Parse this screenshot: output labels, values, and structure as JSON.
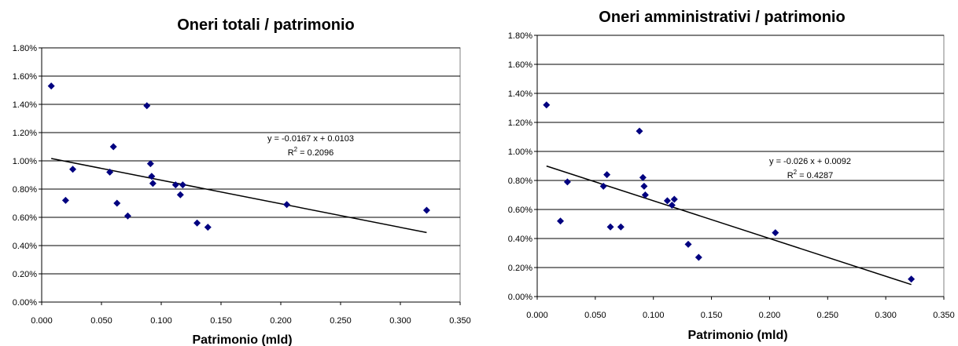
{
  "chart_data": [
    {
      "type": "scatter",
      "title": "Oneri totali /  patrimonio",
      "xlabel": "Patrimonio (mld)",
      "ylabel": "",
      "xlim": [
        0,
        0.35
      ],
      "ylim": [
        0,
        0.018
      ],
      "x_ticks": [
        "0.000",
        "0.050",
        "0.100",
        "0.150",
        "0.200",
        "0.250",
        "0.300",
        "0.350"
      ],
      "y_ticks": [
        "0.00%",
        "0.20%",
        "0.40%",
        "0.60%",
        "0.80%",
        "1.00%",
        "1.20%",
        "1.40%",
        "1.60%",
        "1.80%"
      ],
      "grid": "horizontal",
      "marker_color": "#000080",
      "points": [
        [
          0.008,
          0.0153
        ],
        [
          0.02,
          0.0072
        ],
        [
          0.026,
          0.0094
        ],
        [
          0.057,
          0.0092
        ],
        [
          0.06,
          0.011
        ],
        [
          0.063,
          0.007
        ],
        [
          0.072,
          0.0061
        ],
        [
          0.088,
          0.0139
        ],
        [
          0.091,
          0.0098
        ],
        [
          0.092,
          0.0089
        ],
        [
          0.093,
          0.0084
        ],
        [
          0.112,
          0.0083
        ],
        [
          0.116,
          0.0076
        ],
        [
          0.118,
          0.0083
        ],
        [
          0.13,
          0.0056
        ],
        [
          0.139,
          0.0053
        ],
        [
          0.205,
          0.0069
        ],
        [
          0.322,
          0.0065
        ]
      ],
      "trendline": {
        "slope": -0.0167,
        "intercept": 0.0103,
        "x_range": [
          0.008,
          0.322
        ]
      },
      "equation": "y = -0.0167 x + 0.0103",
      "r2_prefix": "R",
      "r2_sup": "2",
      "r2_value": " = 0.2096"
    },
    {
      "type": "scatter",
      "title": "Oneri amministrativi / patrimonio",
      "xlabel": "Patrimonio (mld)",
      "ylabel": "",
      "xlim": [
        0,
        0.35
      ],
      "ylim": [
        0,
        0.018
      ],
      "x_ticks": [
        "0.000",
        "0.050",
        "0.100",
        "0.150",
        "0.200",
        "0.250",
        "0.300",
        "0.350"
      ],
      "y_ticks": [
        "0.00%",
        "0.20%",
        "0.40%",
        "0.60%",
        "0.80%",
        "1.00%",
        "1.20%",
        "1.40%",
        "1.60%",
        "1.80%"
      ],
      "grid": "horizontal",
      "marker_color": "#000080",
      "points": [
        [
          0.008,
          0.0132
        ],
        [
          0.02,
          0.0052
        ],
        [
          0.026,
          0.0079
        ],
        [
          0.057,
          0.0076
        ],
        [
          0.06,
          0.0084
        ],
        [
          0.063,
          0.0048
        ],
        [
          0.072,
          0.0048
        ],
        [
          0.088,
          0.0114
        ],
        [
          0.091,
          0.0082
        ],
        [
          0.092,
          0.0076
        ],
        [
          0.093,
          0.007
        ],
        [
          0.112,
          0.0066
        ],
        [
          0.116,
          0.0063
        ],
        [
          0.118,
          0.0067
        ],
        [
          0.13,
          0.0036
        ],
        [
          0.139,
          0.0027
        ],
        [
          0.205,
          0.0044
        ],
        [
          0.322,
          0.0012
        ]
      ],
      "trendline": {
        "slope": -0.026,
        "intercept": 0.0092,
        "x_range": [
          0.008,
          0.322
        ]
      },
      "equation": "y = -0.026 x + 0.0092",
      "r2_prefix": "R",
      "r2_sup": "2",
      "r2_value": " = 0.4287"
    }
  ]
}
